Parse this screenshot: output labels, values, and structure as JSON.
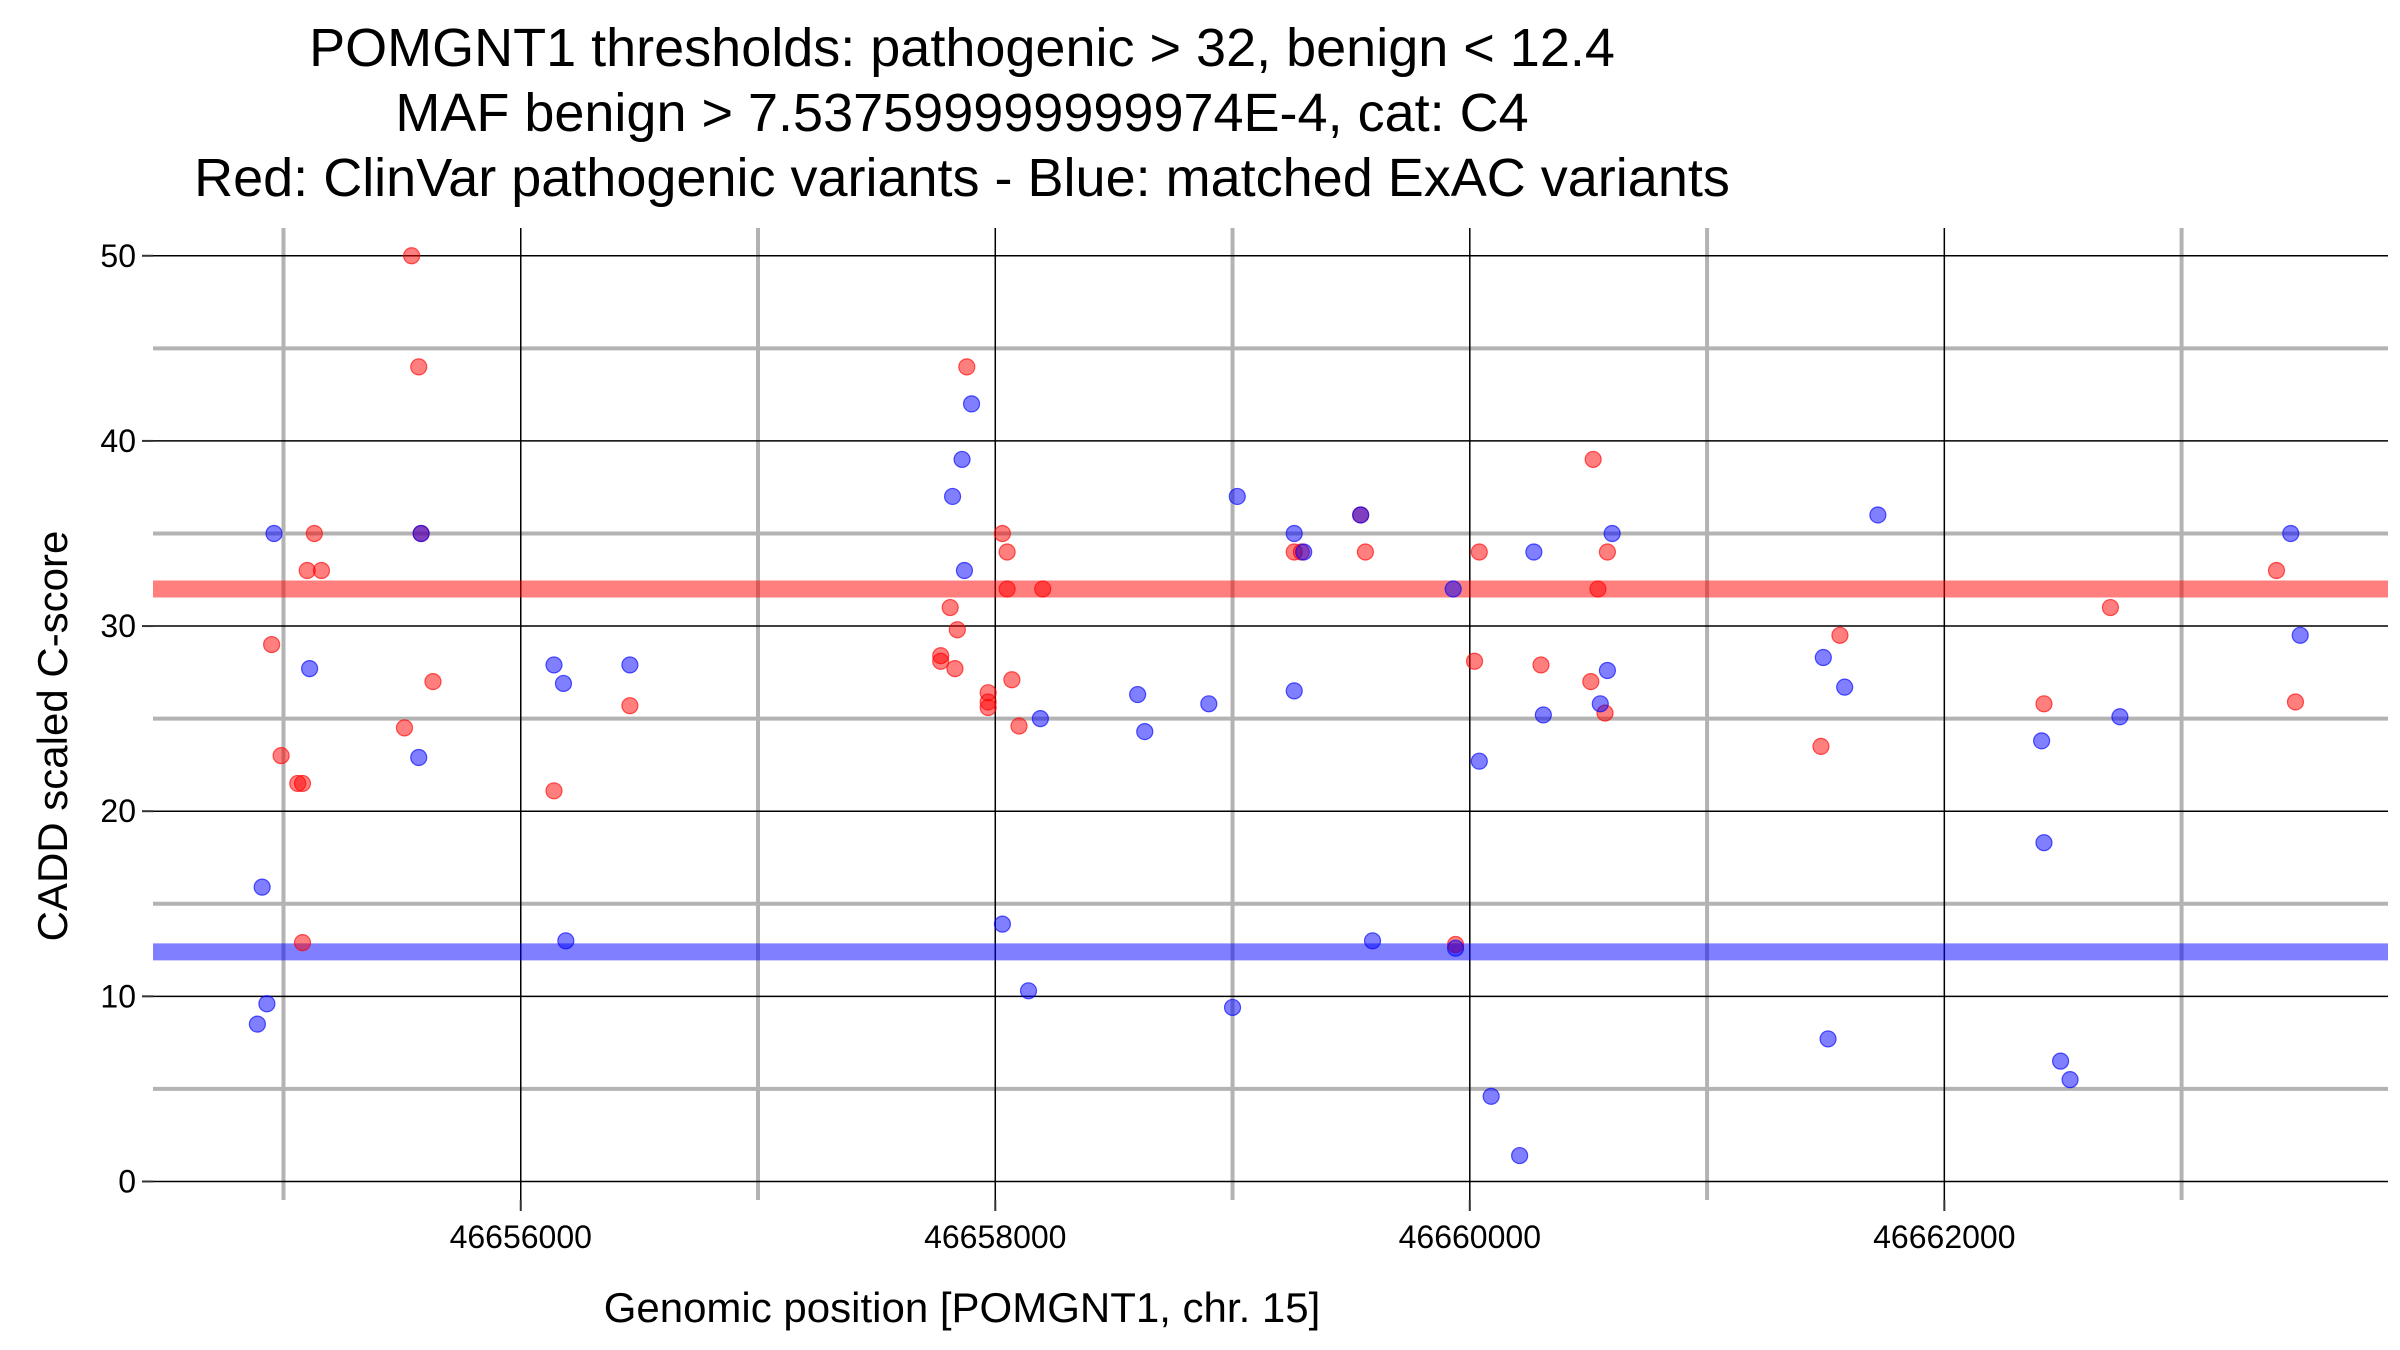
{
  "chart_data": {
    "type": "scatter",
    "title_lines": [
      "POMGNT1 thresholds: pathogenic > 32, benign < 12.4",
      "MAF benign > 7.537599999999974E-4, cat: C4",
      "Red: ClinVar pathogenic variants - Blue: matched ExAC variants"
    ],
    "xlabel": "Genomic position [POMGNT1, chr. 15]",
    "ylabel": "CADD scaled C-score",
    "xlim": [
      46654450,
      46663870
    ],
    "ylim": [
      -1,
      51.5
    ],
    "x_major_ticks": [
      46656000,
      46658000,
      46660000,
      46662000
    ],
    "x_tick_labels": [
      "46656000",
      "46658000",
      "46660000",
      "46662000"
    ],
    "x_minor_ticks": [
      46655000,
      46657000,
      46659000,
      46661000,
      46663000
    ],
    "y_major_ticks": [
      0,
      10,
      20,
      30,
      40,
      50
    ],
    "y_tick_labels": [
      "0",
      "10",
      "20",
      "30",
      "40",
      "50"
    ],
    "y_minor_ticks": [
      5,
      15,
      25,
      35,
      45
    ],
    "thresholds": [
      {
        "name": "pathogenic",
        "value": 32,
        "color": "#ff0000"
      },
      {
        "name": "benign",
        "value": 12.4,
        "color": "#0000ff"
      }
    ],
    "colors": {
      "pathogenic": "#ff0000",
      "benign": "#0000ff",
      "major_grid": "#000000",
      "minor_grid": "#b3b3b3"
    },
    "series": [
      {
        "name": "ClinVar pathogenic variants",
        "color": "#ff0000",
        "points": [
          [
            46654950,
            29.0
          ],
          [
            46654990,
            23.0
          ],
          [
            46655060,
            21.5
          ],
          [
            46655080,
            21.5
          ],
          [
            46655080,
            12.9
          ],
          [
            46655100,
            33.0
          ],
          [
            46655130,
            35.0
          ],
          [
            46655160,
            33.0
          ],
          [
            46655510,
            24.5
          ],
          [
            46655540,
            50.0
          ],
          [
            46655570,
            44.0
          ],
          [
            46655580,
            35.0
          ],
          [
            46655630,
            27.0
          ],
          [
            46656140,
            21.1
          ],
          [
            46656460,
            25.7
          ],
          [
            46657770,
            28.4
          ],
          [
            46657770,
            28.1
          ],
          [
            46657810,
            31.0
          ],
          [
            46657830,
            27.7
          ],
          [
            46657840,
            29.8
          ],
          [
            46657880,
            44.0
          ],
          [
            46657970,
            26.4
          ],
          [
            46657970,
            25.9
          ],
          [
            46657970,
            25.6
          ],
          [
            46658030,
            35.0
          ],
          [
            46658050,
            34.0
          ],
          [
            46658050,
            32.0
          ],
          [
            46658070,
            27.1
          ],
          [
            46658100,
            24.6
          ],
          [
            46658200,
            32.0
          ],
          [
            46659260,
            34.0
          ],
          [
            46659290,
            34.0
          ],
          [
            46659540,
            36.0
          ],
          [
            46659560,
            34.0
          ],
          [
            46659940,
            12.8
          ],
          [
            46660020,
            28.1
          ],
          [
            46660040,
            34.0
          ],
          [
            46660300,
            27.9
          ],
          [
            46660510,
            27.0
          ],
          [
            46660520,
            39.0
          ],
          [
            46660540,
            32.0
          ],
          [
            46660580,
            34.0
          ],
          [
            46660570,
            25.3
          ],
          [
            46661480,
            23.5
          ],
          [
            46661560,
            29.5
          ],
          [
            46662420,
            25.8
          ],
          [
            46662700,
            31.0
          ],
          [
            46663400,
            33.0
          ],
          [
            46663480,
            25.9
          ]
        ]
      },
      {
        "name": "matched ExAC variants",
        "color": "#0000ff",
        "points": [
          [
            46654890,
            8.5
          ],
          [
            46654910,
            15.9
          ],
          [
            46654930,
            9.6
          ],
          [
            46654960,
            35.0
          ],
          [
            46655110,
            27.7
          ],
          [
            46655570,
            22.9
          ],
          [
            46655580,
            35.0
          ],
          [
            46656140,
            27.9
          ],
          [
            46656180,
            26.9
          ],
          [
            46656190,
            13.0
          ],
          [
            46656460,
            27.9
          ],
          [
            46657820,
            37.0
          ],
          [
            46657860,
            39.0
          ],
          [
            46657870,
            33.0
          ],
          [
            46657900,
            42.0
          ],
          [
            46658030,
            13.9
          ],
          [
            46658140,
            10.3
          ],
          [
            46658190,
            25.0
          ],
          [
            46658600,
            26.3
          ],
          [
            46658630,
            24.3
          ],
          [
            46658900,
            25.8
          ],
          [
            46659000,
            9.4
          ],
          [
            46659020,
            37.0
          ],
          [
            46659260,
            35.0
          ],
          [
            46659260,
            26.5
          ],
          [
            46659300,
            34.0
          ],
          [
            46659540,
            36.0
          ],
          [
            46659590,
            13.0
          ],
          [
            46659930,
            32.0
          ],
          [
            46659940,
            12.6
          ],
          [
            46660040,
            22.7
          ],
          [
            46660090,
            4.6
          ],
          [
            46660210,
            1.4
          ],
          [
            46660270,
            34.0
          ],
          [
            46660310,
            25.2
          ],
          [
            46660550,
            25.8
          ],
          [
            46660580,
            27.6
          ],
          [
            46660600,
            35.0
          ],
          [
            46661490,
            28.3
          ],
          [
            46661510,
            7.7
          ],
          [
            46661580,
            26.7
          ],
          [
            46661720,
            36.0
          ],
          [
            46662410,
            23.8
          ],
          [
            46662420,
            18.3
          ],
          [
            46662490,
            6.5
          ],
          [
            46662530,
            5.5
          ],
          [
            46662740,
            25.1
          ],
          [
            46663460,
            35.0
          ],
          [
            46663500,
            29.5
          ]
        ]
      }
    ]
  }
}
